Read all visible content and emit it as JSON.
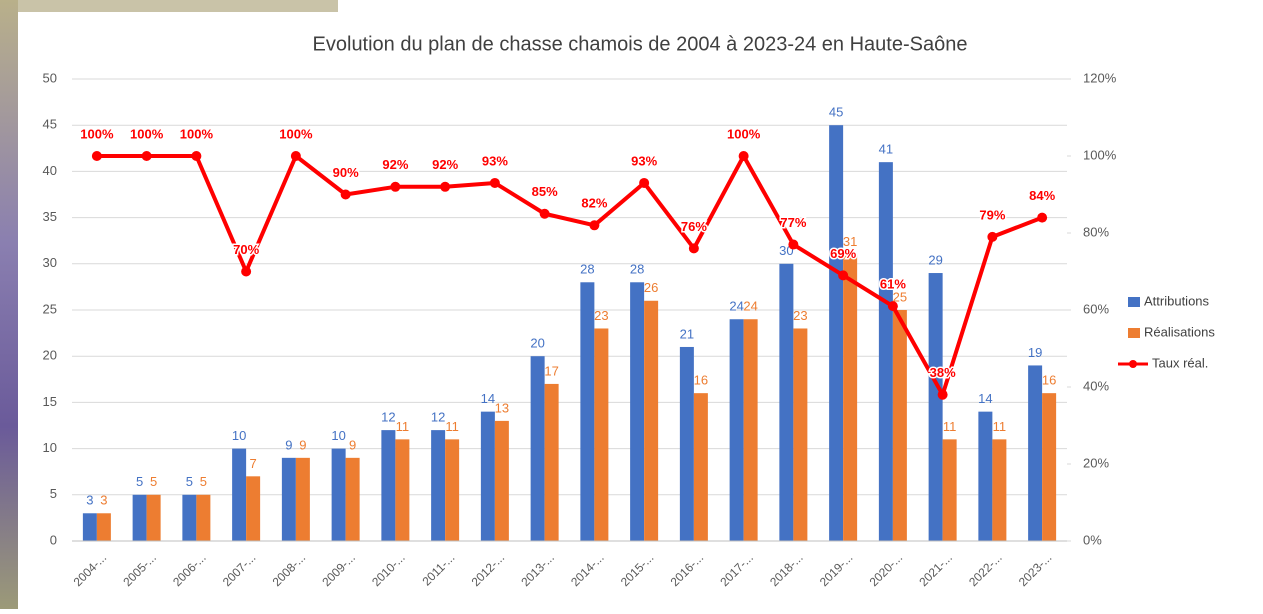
{
  "chart_data": {
    "type": "bar-line",
    "title": "Evolution du plan de chasse chamois de 2004 à 2023-24 en Haute-Saône",
    "categories": [
      "2004-...",
      "2005-...",
      "2006-...",
      "2007-...",
      "2008-...",
      "2009-...",
      "2010-...",
      "2011-...",
      "2012-...",
      "2013-...",
      "2014-...",
      "2015-...",
      "2016-...",
      "2017-...",
      "2018-...",
      "2019-...",
      "2020-...",
      "2021-...",
      "2022-...",
      "2023-..."
    ],
    "series": [
      {
        "name": "Attributions",
        "color": "#4472c4",
        "type": "bar",
        "values": [
          3,
          5,
          5,
          10,
          9,
          10,
          12,
          12,
          14,
          20,
          28,
          28,
          21,
          24,
          30,
          45,
          41,
          29,
          14,
          19
        ]
      },
      {
        "name": "Réalisations",
        "color": "#ed7d31",
        "type": "bar",
        "values": [
          3,
          5,
          5,
          7,
          9,
          9,
          11,
          11,
          13,
          17,
          23,
          26,
          16,
          24,
          23,
          31,
          25,
          11,
          11,
          16
        ]
      },
      {
        "name": "Taux réal.",
        "color": "#ff0000",
        "type": "line",
        "axis": "y2",
        "values": [
          100,
          100,
          100,
          70,
          100,
          90,
          92,
          92,
          93,
          85,
          82,
          93,
          76,
          100,
          77,
          69,
          61,
          38,
          79,
          84
        ],
        "value_labels": [
          "100%",
          "100%",
          "100%",
          "70%",
          "100%",
          "90%",
          "92%",
          "92%",
          "93%",
          "85%",
          "82%",
          "93%",
          "76%",
          "100%",
          "77%",
          "69%",
          "61%",
          "38%",
          "79%",
          "84%"
        ]
      }
    ],
    "ylim": [
      0,
      50
    ],
    "yticks": [
      0,
      5,
      10,
      15,
      20,
      25,
      30,
      35,
      40,
      45,
      50
    ],
    "y2lim": [
      0,
      120
    ],
    "y2ticks": [
      {
        "value": 0,
        "label": "0%"
      },
      {
        "value": 20,
        "label": "20%"
      },
      {
        "value": 40,
        "label": "40%"
      },
      {
        "value": 60,
        "label": "60%"
      },
      {
        "value": 80,
        "label": "80%"
      },
      {
        "value": 100,
        "label": "100%"
      },
      {
        "value": 120,
        "label": "120%"
      }
    ],
    "grid": true,
    "legend": "right"
  }
}
